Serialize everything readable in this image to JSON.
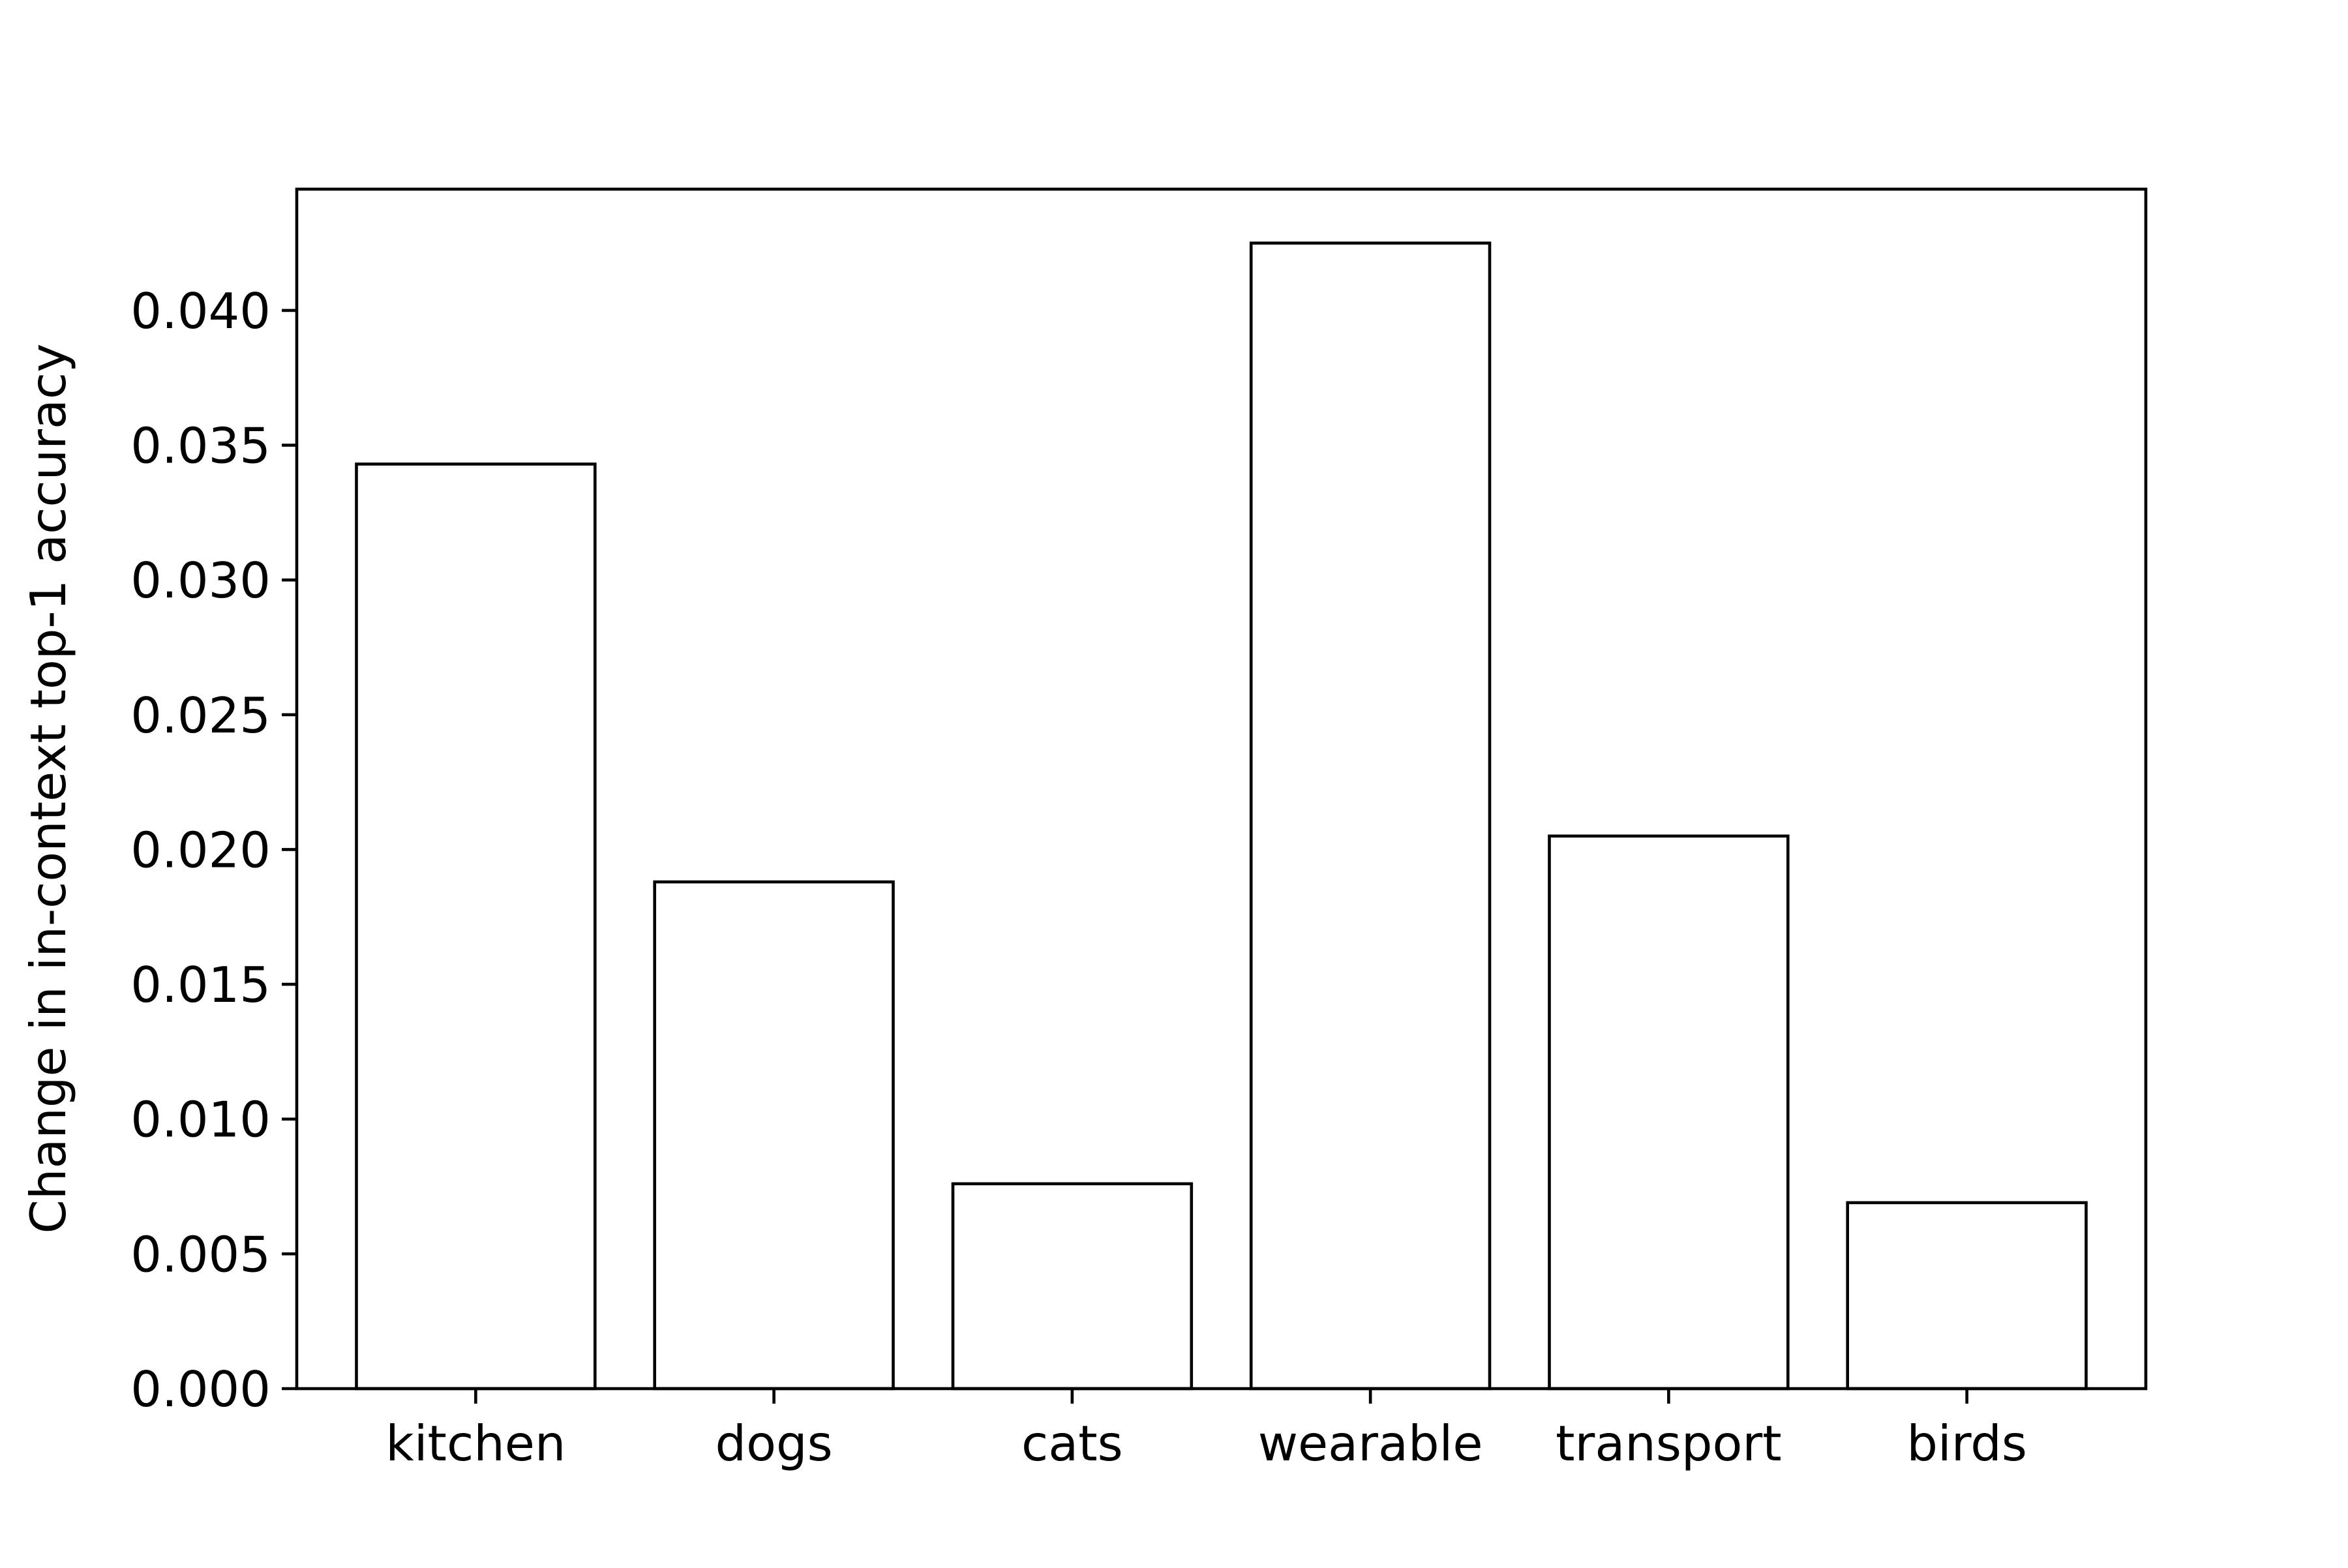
{
  "chart_data": {
    "type": "bar",
    "title": "",
    "xlabel": "",
    "ylabel": "Change in in-context top-1 accuracy",
    "categories": [
      "kitchen",
      "dogs",
      "cats",
      "wearable",
      "transport",
      "birds"
    ],
    "values": [
      0.0343,
      0.0188,
      0.0076,
      0.0425,
      0.0205,
      0.0069
    ],
    "ylim": [
      0,
      0.0445
    ],
    "yticks": [
      0.0,
      0.005,
      0.01,
      0.015,
      0.02,
      0.025,
      0.03,
      0.035,
      0.04
    ],
    "ytick_labels": [
      "0.000",
      "0.005",
      "0.010",
      "0.015",
      "0.020",
      "0.025",
      "0.030",
      "0.035",
      "0.040"
    ],
    "bar_fill": "#ffffff",
    "bar_edge": "#000000",
    "grid": false,
    "legend": "none"
  }
}
